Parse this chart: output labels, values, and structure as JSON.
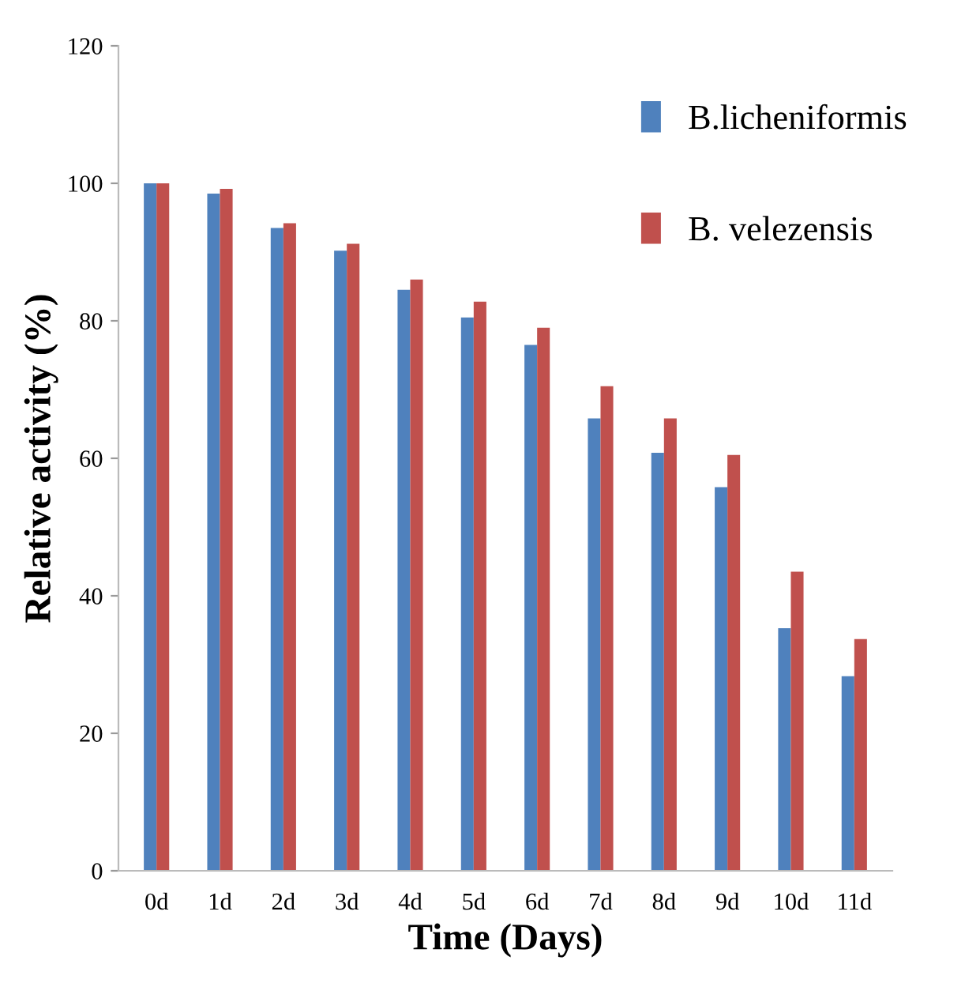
{
  "chart_data": {
    "type": "bar",
    "xlabel": "Time (Days)",
    "ylabel": "Relative activity (%)",
    "categories": [
      "0d",
      "1d",
      "2d",
      "3d",
      "4d",
      "5d",
      "6d",
      "7d",
      "8d",
      "9d",
      "10d",
      "11d"
    ],
    "series": [
      {
        "name": "B.licheniformis",
        "color": "#4f81bd",
        "values": [
          100,
          98.5,
          93.5,
          90.2,
          84.5,
          80.5,
          76.5,
          65.8,
          60.8,
          55.8,
          35.3,
          28.3
        ]
      },
      {
        "name": "B. velezensis",
        "color": "#c0504d",
        "values": [
          100,
          99.2,
          94.2,
          91.2,
          86,
          82.8,
          79,
          70.5,
          65.8,
          60.5,
          43.5,
          33.7
        ]
      }
    ],
    "ylim": [
      0,
      120
    ],
    "yticks": [
      0,
      20,
      40,
      60,
      80,
      100,
      120
    ],
    "grid": false,
    "legend": "top right"
  }
}
